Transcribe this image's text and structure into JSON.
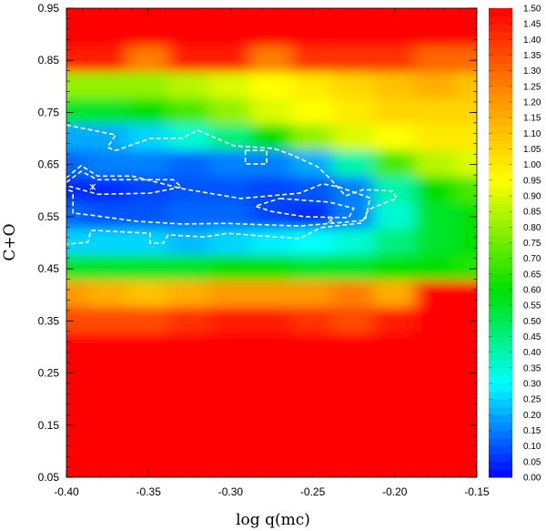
{
  "chart_data": {
    "type": "heatmap",
    "title": "",
    "xlabel": "log q(mc)",
    "ylabel": "C+O",
    "xlim": [
      -0.4,
      -0.15
    ],
    "ylim": [
      0.05,
      0.95
    ],
    "x_ticks": [
      "-0.40",
      "-0.35",
      "-0.30",
      "-0.25",
      "-0.20",
      "-0.15"
    ],
    "y_ticks": [
      "0.05",
      "0.15",
      "0.25",
      "0.35",
      "0.45",
      "0.55",
      "0.65",
      "0.75",
      "0.85",
      "0.95"
    ],
    "colorbar": {
      "range": [
        0.0,
        1.5
      ],
      "ticks": [
        "0.00",
        "0.05",
        "0.10",
        "0.15",
        "0.20",
        "0.25",
        "0.30",
        "0.35",
        "0.40",
        "0.45",
        "0.50",
        "0.55",
        "0.60",
        "0.65",
        "0.70",
        "0.75",
        "0.80",
        "0.85",
        "0.90",
        "0.95",
        "1.00",
        "1.05",
        "1.10",
        "1.15",
        "1.20",
        "1.25",
        "1.30",
        "1.35",
        "1.40",
        "1.45",
        "1.50"
      ],
      "colormap": [
        [
          0.0,
          "#0000ff"
        ],
        [
          0.3,
          "#00ffff"
        ],
        [
          0.6,
          "#00e000"
        ],
        [
          0.95,
          "#ffff00"
        ],
        [
          1.2,
          "#ff9900"
        ],
        [
          1.5,
          "#ff0000"
        ]
      ]
    },
    "grid": {
      "x": [
        -0.4,
        -0.375,
        -0.35,
        -0.325,
        -0.3,
        -0.275,
        -0.25,
        -0.225,
        -0.2,
        -0.175,
        -0.15
      ],
      "y": [
        0.95,
        0.9,
        0.85,
        0.8,
        0.75,
        0.7,
        0.65,
        0.6,
        0.55,
        0.5,
        0.45,
        0.4,
        0.35,
        0.3,
        0.25,
        0.2,
        0.15,
        0.1,
        0.05
      ],
      "z": [
        [
          1.5,
          1.5,
          1.5,
          1.5,
          1.5,
          1.5,
          1.5,
          1.5,
          1.5,
          1.5,
          1.5
        ],
        [
          1.5,
          1.5,
          1.5,
          1.5,
          1.5,
          1.5,
          1.5,
          1.5,
          1.5,
          1.5,
          1.5
        ],
        [
          1.45,
          1.45,
          1.25,
          1.45,
          1.45,
          1.25,
          1.4,
          1.4,
          1.4,
          1.3,
          1.3
        ],
        [
          0.8,
          0.8,
          0.8,
          0.85,
          0.9,
          0.95,
          1.0,
          1.05,
          1.1,
          1.15,
          1.1
        ],
        [
          0.55,
          0.55,
          0.6,
          0.7,
          0.8,
          0.9,
          0.95,
          1.0,
          1.05,
          1.05,
          1.05
        ],
        [
          0.2,
          0.2,
          0.25,
          0.35,
          0.45,
          0.6,
          0.8,
          0.9,
          0.95,
          1.0,
          1.0
        ],
        [
          0.12,
          0.15,
          0.15,
          0.12,
          0.15,
          0.15,
          0.2,
          0.4,
          0.7,
          0.85,
          0.9
        ],
        [
          0.05,
          0.05,
          0.08,
          0.1,
          0.1,
          0.08,
          0.1,
          0.15,
          0.4,
          0.6,
          0.7
        ],
        [
          0.12,
          0.1,
          0.1,
          0.12,
          0.12,
          0.08,
          0.05,
          0.15,
          0.35,
          0.55,
          0.6
        ],
        [
          0.25,
          0.25,
          0.25,
          0.22,
          0.25,
          0.28,
          0.3,
          0.35,
          0.45,
          0.55,
          0.6
        ],
        [
          0.55,
          0.55,
          0.55,
          0.55,
          0.6,
          0.6,
          0.55,
          0.55,
          0.6,
          0.6,
          0.65
        ],
        [
          1.2,
          1.15,
          1.1,
          1.15,
          1.2,
          1.2,
          1.2,
          1.25,
          1.15,
          1.5,
          1.5
        ],
        [
          1.35,
          1.35,
          1.35,
          1.4,
          1.45,
          1.45,
          1.4,
          1.35,
          1.45,
          1.5,
          1.5
        ],
        [
          1.5,
          1.5,
          1.5,
          1.5,
          1.5,
          1.5,
          1.5,
          1.5,
          1.5,
          1.5,
          1.5
        ],
        [
          1.5,
          1.5,
          1.5,
          1.5,
          1.5,
          1.5,
          1.5,
          1.5,
          1.5,
          1.5,
          1.5
        ],
        [
          1.5,
          1.5,
          1.5,
          1.5,
          1.5,
          1.5,
          1.5,
          1.5,
          1.5,
          1.5,
          1.5
        ],
        [
          1.5,
          1.5,
          1.5,
          1.5,
          1.5,
          1.5,
          1.5,
          1.5,
          1.5,
          1.5,
          1.5
        ],
        [
          1.5,
          1.5,
          1.5,
          1.5,
          1.5,
          1.5,
          1.5,
          1.5,
          1.5,
          1.5,
          1.5
        ],
        [
          1.5,
          1.5,
          1.5,
          1.5,
          1.5,
          1.5,
          1.5,
          1.5,
          1.5,
          1.5,
          1.5
        ]
      ]
    },
    "contours": [
      {
        "level": 0.2,
        "points": [
          [
            -0.4,
            0.726
          ],
          [
            -0.37,
            0.707
          ],
          [
            -0.375,
            0.683
          ],
          [
            -0.37,
            0.677
          ],
          [
            -0.349,
            0.7
          ],
          [
            -0.33,
            0.7
          ],
          [
            -0.32,
            0.716
          ],
          [
            -0.298,
            0.686
          ],
          [
            -0.274,
            0.681
          ],
          [
            -0.263,
            0.669
          ],
          [
            -0.247,
            0.646
          ],
          [
            -0.24,
            0.625
          ],
          [
            -0.23,
            0.59
          ],
          [
            -0.219,
            0.602
          ],
          [
            -0.201,
            0.599
          ],
          [
            -0.199,
            0.585
          ],
          [
            -0.216,
            0.564
          ],
          [
            -0.22,
            0.538
          ],
          [
            -0.245,
            0.529
          ],
          [
            -0.258,
            0.508
          ],
          [
            -0.302,
            0.518
          ],
          [
            -0.316,
            0.511
          ],
          [
            -0.338,
            0.515
          ],
          [
            -0.341,
            0.499
          ],
          [
            -0.349,
            0.499
          ],
          [
            -0.349,
            0.518
          ],
          [
            -0.385,
            0.524
          ],
          [
            -0.387,
            0.501
          ],
          [
            -0.4,
            0.497
          ]
        ]
      },
      {
        "level": 0.1,
        "points": [
          [
            -0.4,
            0.625
          ],
          [
            -0.391,
            0.648
          ],
          [
            -0.381,
            0.628
          ],
          [
            -0.36,
            0.628
          ],
          [
            -0.33,
            0.604
          ],
          [
            -0.294,
            0.585
          ],
          [
            -0.258,
            0.595
          ],
          [
            -0.244,
            0.613
          ],
          [
            -0.234,
            0.607
          ],
          [
            -0.215,
            0.586
          ],
          [
            -0.218,
            0.543
          ],
          [
            -0.258,
            0.532
          ],
          [
            -0.302,
            0.537
          ],
          [
            -0.33,
            0.536
          ],
          [
            -0.357,
            0.541
          ],
          [
            -0.385,
            0.553
          ],
          [
            -0.396,
            0.557
          ],
          [
            -0.396,
            0.598
          ],
          [
            -0.4,
            0.602
          ]
        ]
      },
      {
        "level": 0.05,
        "points": [
          [
            -0.4,
            0.616
          ],
          [
            -0.391,
            0.637
          ],
          [
            -0.381,
            0.621
          ],
          [
            -0.335,
            0.621
          ],
          [
            -0.33,
            0.607
          ],
          [
            -0.349,
            0.595
          ],
          [
            -0.381,
            0.593
          ],
          [
            -0.4,
            0.61
          ]
        ]
      },
      {
        "level": 0.05,
        "points": [
          [
            -0.27,
            0.585
          ],
          [
            -0.24,
            0.578
          ],
          [
            -0.225,
            0.566
          ],
          [
            -0.228,
            0.548
          ],
          [
            -0.255,
            0.55
          ],
          [
            -0.275,
            0.56
          ],
          [
            -0.285,
            0.57
          ],
          [
            -0.27,
            0.585
          ]
        ]
      },
      {
        "level": 0.1,
        "points": [
          [
            -0.291,
            0.677
          ],
          [
            -0.278,
            0.677
          ],
          [
            -0.278,
            0.651
          ],
          [
            -0.291,
            0.651
          ],
          [
            -0.291,
            0.677
          ]
        ]
      }
    ],
    "markers": [
      {
        "symbol": "*",
        "x": -0.384,
        "y": 0.607
      },
      {
        "symbol": "x",
        "x": -0.239,
        "y": 0.543
      }
    ]
  }
}
